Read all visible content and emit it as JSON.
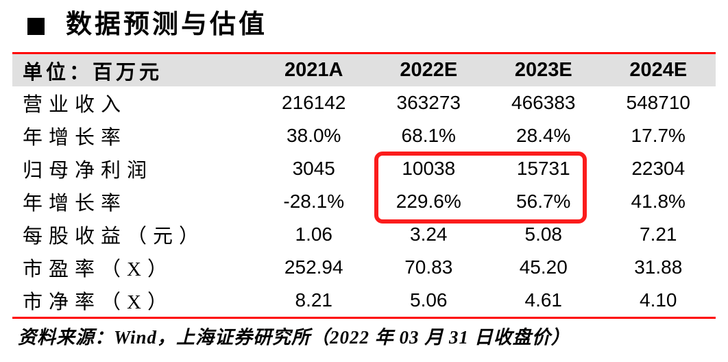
{
  "title": {
    "bullet_icon": "black-square",
    "text": "数据预测与估值"
  },
  "table": {
    "unit_label": "单位：百万元",
    "columns": [
      "2021A",
      "2022E",
      "2023E",
      "2024E"
    ],
    "rows": [
      {
        "label": "营业收入",
        "values": [
          "216142",
          "363273",
          "466383",
          "548710"
        ]
      },
      {
        "label": "年增长率",
        "values": [
          "38.0%",
          "68.1%",
          "28.4%",
          "17.7%"
        ]
      },
      {
        "label": "归母净利润",
        "values": [
          "3045",
          "10038",
          "15731",
          "22304"
        ]
      },
      {
        "label": "年增长率",
        "values": [
          "-28.1%",
          "229.6%",
          "56.7%",
          "41.8%"
        ]
      },
      {
        "label": "每股收益（元）",
        "values": [
          "1.06",
          "3.24",
          "5.08",
          "7.21"
        ]
      },
      {
        "label": "市盈率（X）",
        "values": [
          "252.94",
          "70.83",
          "45.20",
          "31.88"
        ]
      },
      {
        "label": "市净率（X）",
        "values": [
          "8.21",
          "5.06",
          "4.61",
          "4.10"
        ]
      }
    ]
  },
  "highlight": {
    "note": "red annotation box around 2022E and 2023E values of 归母净利润 and its 年增长率",
    "row_indexes": [
      2,
      3
    ],
    "column_indexes": [
      1,
      2
    ]
  },
  "footer": {
    "source": "资料来源：Wind，上海证券研究所（2022 年 03 月 31 日收盘价）"
  },
  "colors": {
    "accent_red": "#fe0000",
    "highlight_border": "#fb1c1c",
    "header_bg": "#e0e0e0",
    "text": "#000000"
  }
}
